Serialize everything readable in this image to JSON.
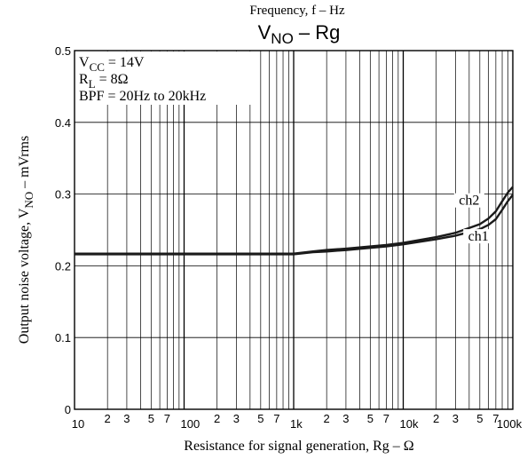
{
  "chart_data": {
    "type": "line",
    "top_label": "Frequency, f  –  Hz",
    "title": "V",
    "title_sub": "NO",
    "title_rest": " – Rg",
    "xlabel": "Resistance for signal generation, Rg  –  Ω",
    "ylabel": {
      "pre": "Output noise voltage, V",
      "sub": "NO",
      "post": "  –  mVrms"
    },
    "x_scale": "log",
    "xlim": [
      10,
      100000
    ],
    "ylim": [
      0,
      0.5
    ],
    "x_major_labels": [
      {
        "x": 10,
        "text": "10"
      },
      {
        "x": 100,
        "text": "100"
      },
      {
        "x": 1000,
        "text": "1k"
      },
      {
        "x": 10000,
        "text": "10k"
      },
      {
        "x": 100000,
        "text": "100k"
      }
    ],
    "x_minor_labels": [
      {
        "x": 20,
        "text": "2"
      },
      {
        "x": 30,
        "text": "3"
      },
      {
        "x": 50,
        "text": "5"
      },
      {
        "x": 70,
        "text": "7"
      },
      {
        "x": 200,
        "text": "2"
      },
      {
        "x": 300,
        "text": "3"
      },
      {
        "x": 500,
        "text": "5"
      },
      {
        "x": 700,
        "text": "7"
      },
      {
        "x": 2000,
        "text": "2"
      },
      {
        "x": 3000,
        "text": "3"
      },
      {
        "x": 5000,
        "text": "5"
      },
      {
        "x": 7000,
        "text": "7"
      },
      {
        "x": 20000,
        "text": "2"
      },
      {
        "x": 30000,
        "text": "3"
      },
      {
        "x": 50000,
        "text": "5"
      },
      {
        "x": 70000,
        "text": "7"
      }
    ],
    "y_ticks": [
      {
        "y": 0,
        "text": "0"
      },
      {
        "y": 0.1,
        "text": "0.1"
      },
      {
        "y": 0.2,
        "text": "0.2"
      },
      {
        "y": 0.3,
        "text": "0.3"
      },
      {
        "y": 0.4,
        "text": "0.4"
      },
      {
        "y": 0.5,
        "text": "0.5"
      }
    ],
    "grid": true,
    "conditions": [
      {
        "pre": "V",
        "sub": "CC",
        "post": " = 14V"
      },
      {
        "pre": "R",
        "sub": "L",
        "post": " = 8Ω"
      },
      {
        "pre": "BPF = 20Hz to 20kHz",
        "sub": "",
        "post": ""
      }
    ],
    "series": [
      {
        "name": "ch1",
        "x": [
          10,
          100,
          1000,
          1500,
          2000,
          3000,
          5000,
          7000,
          10000,
          20000,
          30000,
          50000,
          60000,
          70000,
          80000,
          90000,
          100000
        ],
        "y": [
          0.216,
          0.216,
          0.216,
          0.219,
          0.22,
          0.222,
          0.225,
          0.227,
          0.23,
          0.237,
          0.242,
          0.251,
          0.257,
          0.265,
          0.278,
          0.29,
          0.299
        ]
      },
      {
        "name": "ch2",
        "x": [
          10,
          100,
          1000,
          1500,
          2000,
          3000,
          5000,
          7000,
          10000,
          20000,
          30000,
          50000,
          60000,
          70000,
          80000,
          90000,
          100000
        ],
        "y": [
          0.217,
          0.217,
          0.217,
          0.22,
          0.222,
          0.224,
          0.227,
          0.229,
          0.232,
          0.24,
          0.246,
          0.258,
          0.266,
          0.276,
          0.29,
          0.302,
          0.31
        ]
      }
    ]
  }
}
